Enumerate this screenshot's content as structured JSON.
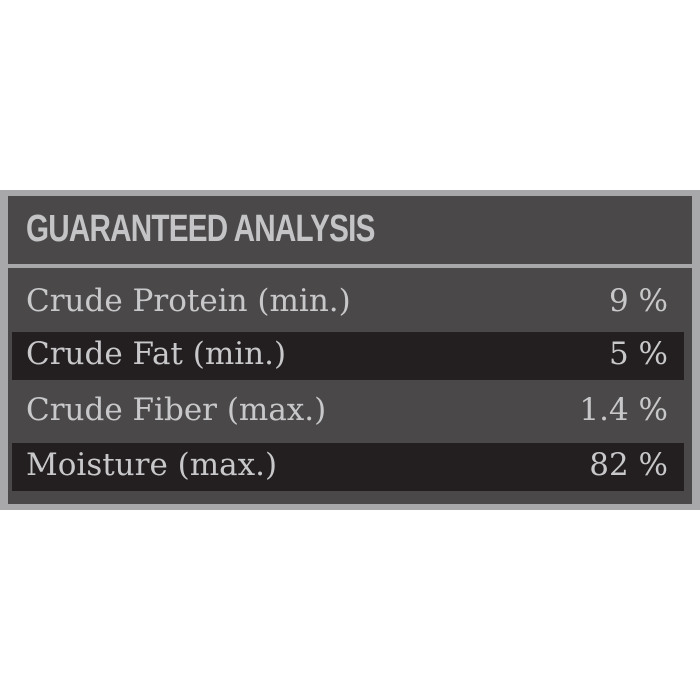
{
  "title": "GUARANTEED ANALYSIS",
  "rows": [
    {
      "label": "Crude Protein (min.)",
      "value": "9 %"
    },
    {
      "label": "Crude Fat (min.)",
      "value": "5 %"
    },
    {
      "label": "Crude Fiber (max.)",
      "value": "1.4 %"
    },
    {
      "label": "Moisture (max.)",
      "value": "82 %"
    }
  ],
  "colors": {
    "border": "#a8a8aa",
    "panel": "#4a4849",
    "dark_row": "#231f20",
    "text": "#c8c8ca"
  }
}
